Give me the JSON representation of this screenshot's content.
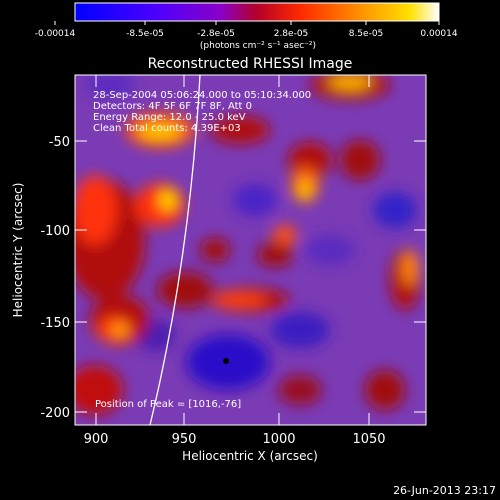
{
  "colorbar": {
    "tick_labels": [
      "-0.00014",
      "-8.5e-05",
      "-2.8e-05",
      "2.8e-05",
      "8.5e-05",
      "0.00014"
    ],
    "units": "(photons cm⁻² s⁻¹ asec⁻²)",
    "range": [
      -0.00014,
      0.00014
    ],
    "colors": [
      "#0000ff",
      "#7a00ff",
      "#c80000",
      "#ff3c00",
      "#ffb400",
      "#ffffff"
    ]
  },
  "plot": {
    "title": "Reconstructed RHESSI Image",
    "xlabel": "Heliocentric X (arcsec)",
    "ylabel": "Heliocentric Y (arcsec)",
    "x_ticks": [
      "900",
      "950",
      "1000",
      "1050"
    ],
    "y_ticks": [
      "-50",
      "-100",
      "-150",
      "-200"
    ],
    "xlim": [
      890,
      1080
    ],
    "ylim": [
      -205,
      -18
    ],
    "info_lines": [
      "28-Sep-2004 05:06:24.000 to 05:10:34.000",
      "Detectors: 4F 5F 6F 7F 8F, Att 0",
      "Energy Range: 12.0 - 25.0 keV",
      "Clean    Total counts: 4.39E+03"
    ],
    "peak_label": "Position of Peak = [1016,-76]",
    "background_color": "#7a3bb5"
  },
  "footer": {
    "date": "26-Jun-2013 23:17"
  }
}
